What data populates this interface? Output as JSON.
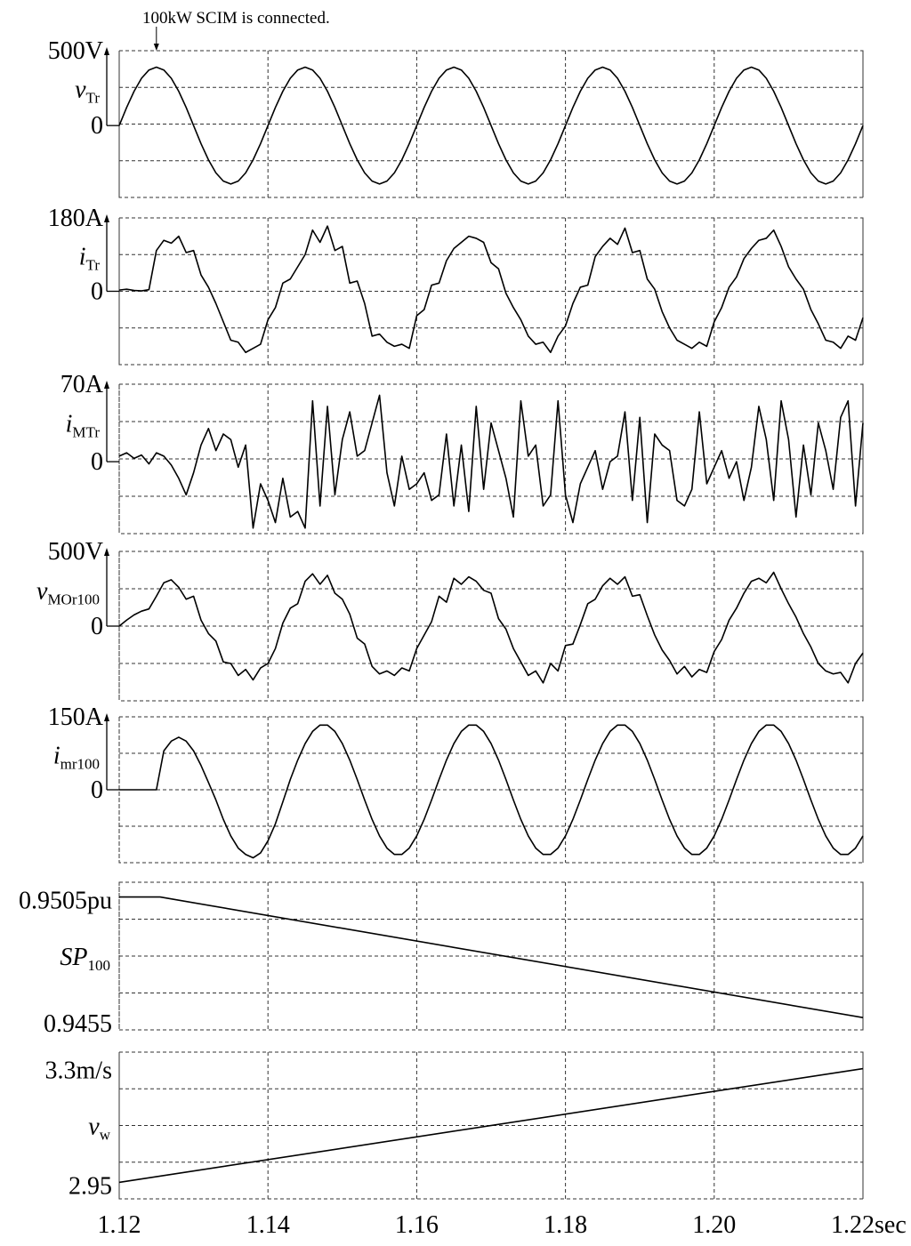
{
  "chart_data": [
    {
      "type": "line",
      "annotation": {
        "text": "100kW SCIM is connected.",
        "x": 1.125
      },
      "ylabel": {
        "symbol": "v",
        "subscript": "Tr"
      },
      "ylim": [
        -480,
        500
      ],
      "yticks": [
        {
          "value": 500,
          "label": "500V"
        },
        0
      ],
      "xlim": [
        1.12,
        1.22
      ],
      "x": [
        1.12,
        1.121,
        1.122,
        1.123,
        1.124,
        1.125,
        1.126,
        1.127,
        1.128,
        1.129,
        1.13,
        1.131,
        1.132,
        1.133,
        1.134,
        1.135,
        1.136,
        1.137,
        1.138,
        1.139,
        1.14,
        1.141,
        1.142,
        1.143,
        1.144,
        1.145,
        1.146,
        1.147,
        1.148,
        1.149,
        1.15,
        1.151,
        1.152,
        1.153,
        1.154,
        1.155,
        1.156,
        1.157,
        1.158,
        1.159,
        1.16,
        1.161,
        1.162,
        1.163,
        1.164,
        1.165,
        1.166,
        1.167,
        1.168,
        1.169,
        1.17,
        1.171,
        1.172,
        1.173,
        1.174,
        1.175,
        1.176,
        1.177,
        1.178,
        1.179,
        1.18,
        1.181,
        1.182,
        1.183,
        1.184,
        1.185,
        1.186,
        1.187,
        1.188,
        1.189,
        1.19,
        1.191,
        1.192,
        1.193,
        1.194,
        1.195,
        1.196,
        1.197,
        1.198,
        1.199,
        1.2,
        1.201,
        1.202,
        1.203,
        1.204,
        1.205,
        1.206,
        1.207,
        1.208,
        1.209,
        1.21,
        1.211,
        1.212,
        1.213,
        1.214,
        1.215,
        1.216,
        1.217,
        1.218,
        1.219,
        1.22
      ],
      "values": [
        0,
        121,
        229,
        316,
        371,
        390,
        371,
        316,
        229,
        121,
        0,
        -121,
        -229,
        -316,
        -371,
        -390,
        -371,
        -316,
        -229,
        -121,
        0,
        121,
        229,
        316,
        371,
        390,
        371,
        316,
        229,
        121,
        0,
        -121,
        -229,
        -316,
        -371,
        -390,
        -371,
        -316,
        -229,
        -121,
        0,
        121,
        229,
        316,
        371,
        390,
        371,
        316,
        229,
        121,
        0,
        -121,
        -229,
        -316,
        -371,
        -390,
        -371,
        -316,
        -229,
        -121,
        0,
        121,
        229,
        316,
        371,
        390,
        371,
        316,
        229,
        121,
        0,
        -121,
        -229,
        -316,
        -371,
        -390,
        -371,
        -316,
        -229,
        -121,
        0,
        121,
        229,
        316,
        371,
        390,
        371,
        316,
        229,
        121,
        0,
        -121,
        -229,
        -316,
        -371,
        -390,
        -371,
        -316,
        -229,
        -121,
        0
      ]
    },
    {
      "type": "line",
      "ylabel": {
        "symbol": "i",
        "subscript": "Tr"
      },
      "ylim": [
        -180,
        180
      ],
      "yticks": [
        {
          "value": 180,
          "label": "180A"
        },
        0
      ],
      "xlim": [
        1.12,
        1.22
      ],
      "x": [
        1.12,
        1.121,
        1.122,
        1.123,
        1.124,
        1.125,
        1.126,
        1.127,
        1.128,
        1.129,
        1.13,
        1.131,
        1.132,
        1.133,
        1.134,
        1.135,
        1.136,
        1.137,
        1.138,
        1.139,
        1.14,
        1.141,
        1.142,
        1.143,
        1.144,
        1.145,
        1.146,
        1.147,
        1.148,
        1.149,
        1.15,
        1.151,
        1.152,
        1.153,
        1.154,
        1.155,
        1.156,
        1.157,
        1.158,
        1.159,
        1.16,
        1.161,
        1.162,
        1.163,
        1.164,
        1.165,
        1.166,
        1.167,
        1.168,
        1.169,
        1.17,
        1.171,
        1.172,
        1.173,
        1.174,
        1.175,
        1.176,
        1.177,
        1.178,
        1.179,
        1.18,
        1.181,
        1.182,
        1.183,
        1.184,
        1.185,
        1.186,
        1.187,
        1.188,
        1.189,
        1.19,
        1.191,
        1.192,
        1.193,
        1.194,
        1.195,
        1.196,
        1.197,
        1.198,
        1.199,
        1.2,
        1.201,
        1.202,
        1.203,
        1.204,
        1.205,
        1.206,
        1.207,
        1.208,
        1.209,
        1.21,
        1.211,
        1.212,
        1.213,
        1.214,
        1.215,
        1.216,
        1.217,
        1.218,
        1.219,
        1.22
      ],
      "values": [
        3,
        5,
        2,
        1,
        4,
        100,
        125,
        118,
        135,
        95,
        100,
        40,
        10,
        -30,
        -75,
        -120,
        -125,
        -150,
        -140,
        -130,
        -70,
        -40,
        20,
        30,
        60,
        90,
        150,
        120,
        160,
        100,
        110,
        20,
        25,
        -30,
        -110,
        -105,
        -125,
        -135,
        -130,
        -140,
        -60,
        -45,
        15,
        20,
        75,
        105,
        120,
        135,
        130,
        120,
        70,
        55,
        -5,
        -40,
        -70,
        -110,
        -130,
        -125,
        -150,
        -110,
        -85,
        -30,
        10,
        15,
        85,
        110,
        130,
        115,
        155,
        95,
        100,
        30,
        5,
        -50,
        -90,
        -120,
        -130,
        -140,
        -125,
        -135,
        -75,
        -40,
        10,
        35,
        80,
        105,
        125,
        130,
        150,
        110,
        60,
        30,
        5,
        -45,
        -80,
        -120,
        -125,
        -140,
        -110,
        -120,
        -65
      ]
    },
    {
      "type": "line",
      "ylabel": {
        "symbol": "i",
        "subscript": "MTr"
      },
      "ylim": [
        -65,
        70
      ],
      "yticks": [
        {
          "value": 70,
          "label": "70A"
        },
        0
      ],
      "xlim": [
        1.12,
        1.22
      ],
      "x": [
        1.12,
        1.121,
        1.122,
        1.123,
        1.124,
        1.125,
        1.126,
        1.127,
        1.128,
        1.129,
        1.13,
        1.131,
        1.132,
        1.133,
        1.134,
        1.135,
        1.136,
        1.137,
        1.138,
        1.139,
        1.14,
        1.141,
        1.142,
        1.143,
        1.144,
        1.145,
        1.146,
        1.147,
        1.148,
        1.149,
        1.15,
        1.151,
        1.152,
        1.153,
        1.154,
        1.155,
        1.156,
        1.157,
        1.158,
        1.159,
        1.16,
        1.161,
        1.162,
        1.163,
        1.164,
        1.165,
        1.166,
        1.167,
        1.168,
        1.169,
        1.17,
        1.171,
        1.172,
        1.173,
        1.174,
        1.175,
        1.176,
        1.177,
        1.178,
        1.179,
        1.18,
        1.181,
        1.182,
        1.183,
        1.184,
        1.185,
        1.186,
        1.187,
        1.188,
        1.189,
        1.19,
        1.191,
        1.192,
        1.193,
        1.194,
        1.195,
        1.196,
        1.197,
        1.198,
        1.199,
        1.2,
        1.201,
        1.202,
        1.203,
        1.204,
        1.205,
        1.206,
        1.207,
        1.208,
        1.209,
        1.21,
        1.211,
        1.212,
        1.213,
        1.214,
        1.215,
        1.216,
        1.217,
        1.218,
        1.219,
        1.22
      ],
      "values": [
        5,
        8,
        3,
        6,
        -2,
        8,
        5,
        -3,
        -15,
        -30,
        -10,
        15,
        30,
        10,
        25,
        20,
        -5,
        15,
        -60,
        -20,
        -35,
        -55,
        -15,
        -50,
        -45,
        -60,
        55,
        -40,
        50,
        -30,
        20,
        45,
        5,
        10,
        35,
        60,
        -10,
        -40,
        5,
        -25,
        -20,
        -10,
        -35,
        -30,
        25,
        -40,
        15,
        -45,
        50,
        -25,
        35,
        10,
        -15,
        -50,
        55,
        5,
        15,
        -40,
        -30,
        55,
        -30,
        -55,
        -20,
        -5,
        10,
        -25,
        0,
        5,
        45,
        -35,
        40,
        -55,
        25,
        15,
        10,
        -35,
        -40,
        -25,
        45,
        -20,
        -5,
        10,
        -15,
        0,
        -35,
        -5,
        50,
        20,
        -35,
        55,
        20,
        -50,
        15,
        -30,
        35,
        10,
        -25,
        40,
        55,
        -40,
        35
      ]
    },
    {
      "type": "line",
      "ylabel": {
        "symbol": "v",
        "subscript": "MOr100"
      },
      "ylim": [
        -500,
        500
      ],
      "yticks": [
        {
          "value": 500,
          "label": "500V"
        },
        0
      ],
      "xlim": [
        1.12,
        1.22
      ],
      "x": [
        1.12,
        1.121,
        1.122,
        1.123,
        1.124,
        1.125,
        1.126,
        1.127,
        1.128,
        1.129,
        1.13,
        1.131,
        1.132,
        1.133,
        1.134,
        1.135,
        1.136,
        1.137,
        1.138,
        1.139,
        1.14,
        1.141,
        1.142,
        1.143,
        1.144,
        1.145,
        1.146,
        1.147,
        1.148,
        1.149,
        1.15,
        1.151,
        1.152,
        1.153,
        1.154,
        1.155,
        1.156,
        1.157,
        1.158,
        1.159,
        1.16,
        1.161,
        1.162,
        1.163,
        1.164,
        1.165,
        1.166,
        1.167,
        1.168,
        1.169,
        1.17,
        1.171,
        1.172,
        1.173,
        1.174,
        1.175,
        1.176,
        1.177,
        1.178,
        1.179,
        1.18,
        1.181,
        1.182,
        1.183,
        1.184,
        1.185,
        1.186,
        1.187,
        1.188,
        1.189,
        1.19,
        1.191,
        1.192,
        1.193,
        1.194,
        1.195,
        1.196,
        1.197,
        1.198,
        1.199,
        1.2,
        1.201,
        1.202,
        1.203,
        1.204,
        1.205,
        1.206,
        1.207,
        1.208,
        1.209,
        1.21,
        1.211,
        1.212,
        1.213,
        1.214,
        1.215,
        1.216,
        1.217,
        1.218,
        1.219,
        1.22
      ],
      "values": [
        0,
        40,
        75,
        100,
        115,
        200,
        290,
        310,
        260,
        180,
        200,
        40,
        -50,
        -100,
        -240,
        -250,
        -330,
        -290,
        -360,
        -280,
        -250,
        -150,
        20,
        120,
        150,
        300,
        350,
        280,
        340,
        220,
        180,
        80,
        -80,
        -120,
        -270,
        -320,
        -300,
        -330,
        -280,
        -300,
        -150,
        -60,
        30,
        200,
        160,
        320,
        280,
        330,
        300,
        240,
        220,
        50,
        -20,
        -150,
        -240,
        -330,
        -300,
        -380,
        -250,
        -300,
        -130,
        -120,
        10,
        150,
        180,
        270,
        320,
        280,
        330,
        200,
        210,
        70,
        -60,
        -160,
        -230,
        -320,
        -270,
        -340,
        -290,
        -310,
        -170,
        -90,
        40,
        120,
        220,
        300,
        320,
        290,
        360,
        250,
        150,
        60,
        -50,
        -140,
        -250,
        -300,
        -320,
        -310,
        -380,
        -250,
        -180
      ]
    },
    {
      "type": "line",
      "ylabel": {
        "symbol": "i",
        "subscript": "mr100"
      },
      "ylim": [
        -150,
        150
      ],
      "yticks": [
        {
          "value": 150,
          "label": "150A"
        },
        0
      ],
      "xlim": [
        1.12,
        1.22
      ],
      "x": [
        1.12,
        1.121,
        1.122,
        1.123,
        1.124,
        1.125,
        1.126,
        1.127,
        1.128,
        1.129,
        1.13,
        1.131,
        1.132,
        1.133,
        1.134,
        1.135,
        1.136,
        1.137,
        1.138,
        1.139,
        1.14,
        1.141,
        1.142,
        1.143,
        1.144,
        1.145,
        1.146,
        1.147,
        1.148,
        1.149,
        1.15,
        1.151,
        1.152,
        1.153,
        1.154,
        1.155,
        1.156,
        1.157,
        1.158,
        1.159,
        1.16,
        1.161,
        1.162,
        1.163,
        1.164,
        1.165,
        1.166,
        1.167,
        1.168,
        1.169,
        1.17,
        1.171,
        1.172,
        1.173,
        1.174,
        1.175,
        1.176,
        1.177,
        1.178,
        1.179,
        1.18,
        1.181,
        1.182,
        1.183,
        1.184,
        1.185,
        1.186,
        1.187,
        1.188,
        1.189,
        1.19,
        1.191,
        1.192,
        1.193,
        1.194,
        1.195,
        1.196,
        1.197,
        1.198,
        1.199,
        1.2,
        1.201,
        1.202,
        1.203,
        1.204,
        1.205,
        1.206,
        1.207,
        1.208,
        1.209,
        1.21,
        1.211,
        1.212,
        1.213,
        1.214,
        1.215,
        1.216,
        1.217,
        1.218,
        1.219,
        1.22
      ],
      "values": [
        0,
        0,
        0,
        0,
        0,
        0,
        80,
        100,
        108,
        100,
        80,
        50,
        15,
        -21,
        -61,
        -95,
        -120,
        -133,
        -140,
        -130,
        -105,
        -70,
        -25,
        21,
        61,
        95,
        120,
        133,
        133,
        120,
        95,
        61,
        21,
        -21,
        -61,
        -95,
        -120,
        -133,
        -133,
        -120,
        -95,
        -61,
        -21,
        21,
        61,
        95,
        120,
        133,
        133,
        120,
        95,
        61,
        21,
        -21,
        -61,
        -95,
        -120,
        -133,
        -133,
        -120,
        -95,
        -61,
        -21,
        21,
        61,
        95,
        120,
        133,
        133,
        120,
        95,
        61,
        21,
        -21,
        -61,
        -95,
        -120,
        -133,
        -133,
        -120,
        -95,
        -61,
        -21,
        21,
        61,
        95,
        120,
        133,
        133,
        120,
        95,
        61,
        21,
        -21,
        -61,
        -95,
        -120,
        -133,
        -133,
        -120,
        -95
      ]
    },
    {
      "type": "line",
      "ylabel": {
        "symbol": "SP",
        "subscript": "100"
      },
      "ylim": [
        0.9451,
        0.9511
      ],
      "yticks": [
        {
          "value": 0.9505,
          "label": "0.9505pu"
        },
        0.9455
      ],
      "xlim": [
        1.12,
        1.22
      ],
      "x": [
        1.12,
        1.1255,
        1.22
      ],
      "values": [
        0.9505,
        0.9505,
        0.9456
      ]
    },
    {
      "type": "line",
      "ylabel": {
        "symbol": "v",
        "subscript": "w"
      },
      "ylim": [
        2.9,
        3.345
      ],
      "yticks": [
        {
          "value": 3.3,
          "label": "3.3m/s"
        },
        2.95
      ],
      "xlim": [
        1.12,
        1.22
      ],
      "xticks": [
        1.12,
        1.14,
        1.16,
        1.18,
        {
          "value": 1.2,
          "label": "1.20"
        },
        {
          "value": 1.22,
          "label": "1.22sec"
        }
      ],
      "x": [
        1.12,
        1.22
      ],
      "values": [
        2.95,
        3.295
      ]
    }
  ]
}
